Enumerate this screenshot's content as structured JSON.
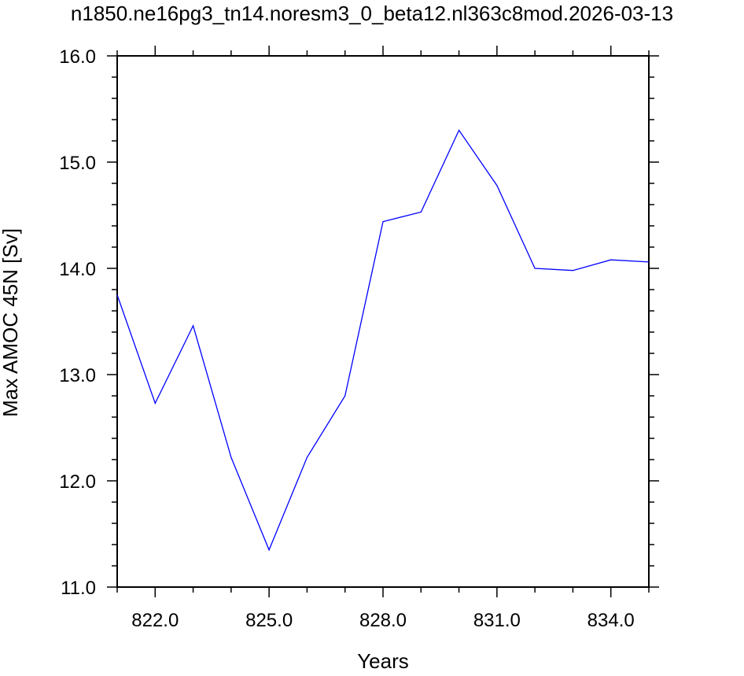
{
  "chart_data": {
    "type": "line",
    "title": "n1850.ne16pg3_tn14.noresm3_0_beta12.nl363c8mod.2026-03-13",
    "xlabel": "Years",
    "ylabel": "Max AMOC 45N [Sv]",
    "xlim": [
      821,
      835
    ],
    "ylim": [
      11.0,
      16.0
    ],
    "x_ticks": [
      "822.0",
      "825.0",
      "828.0",
      "831.0",
      "834.0"
    ],
    "y_ticks": [
      "11.0",
      "12.0",
      "13.0",
      "14.0",
      "15.0",
      "16.0"
    ],
    "grid": false,
    "color": "#0000ff",
    "x": [
      821,
      822,
      823,
      824,
      825,
      826,
      827,
      828,
      829,
      830,
      831,
      832,
      833,
      834,
      835
    ],
    "y": [
      13.75,
      12.73,
      13.46,
      12.22,
      11.35,
      12.22,
      12.8,
      14.44,
      14.53,
      15.3,
      14.78,
      14.0,
      13.98,
      14.08,
      14.06
    ]
  }
}
